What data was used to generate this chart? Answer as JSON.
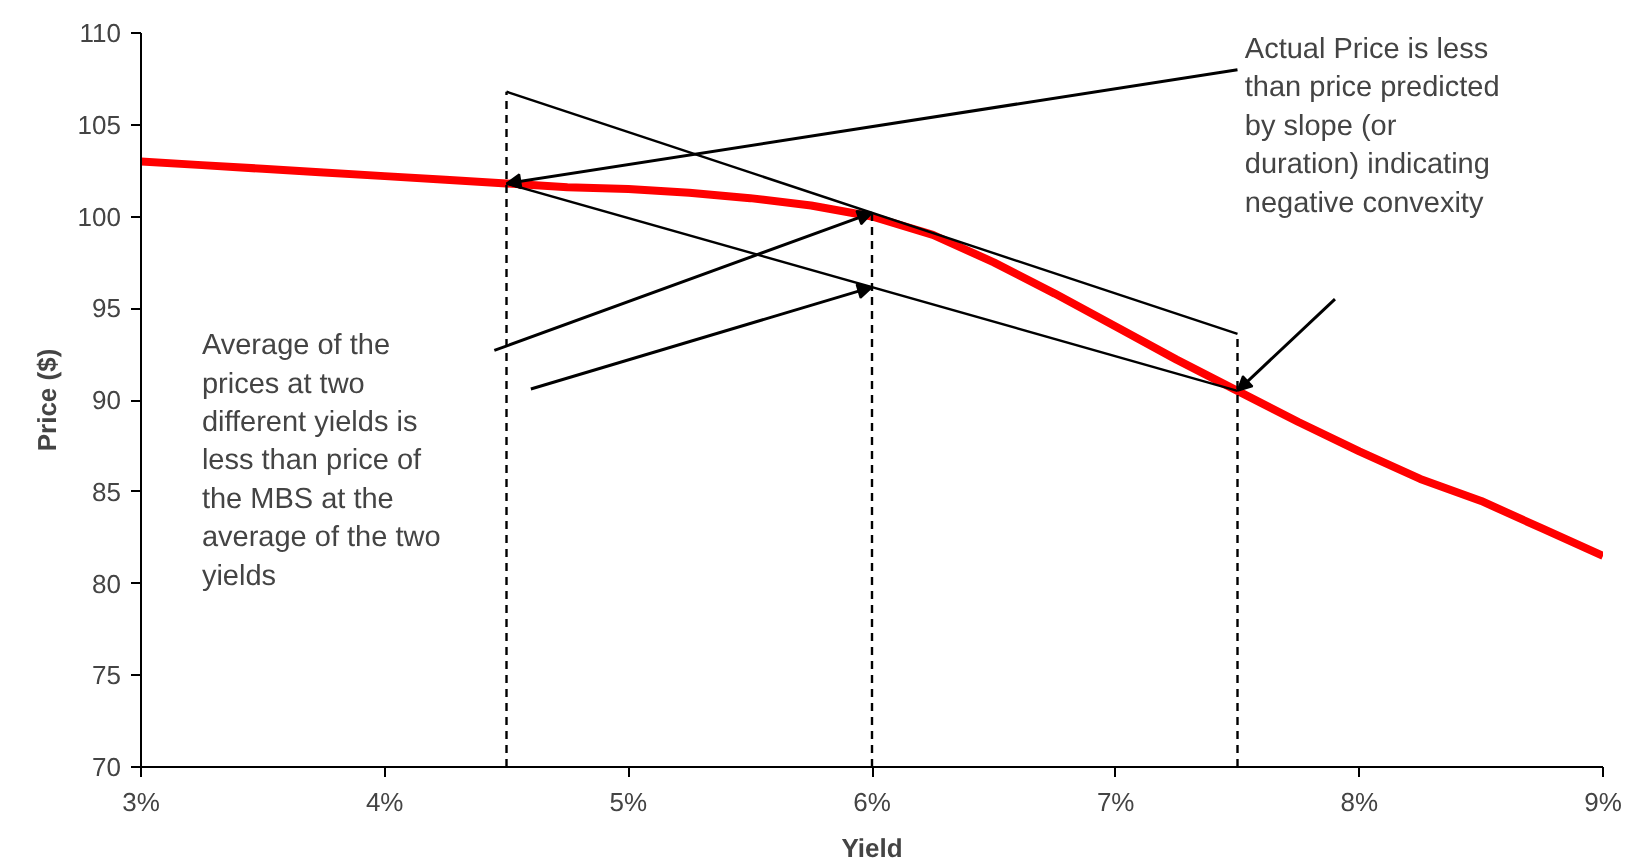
{
  "chart_data": {
    "type": "line",
    "xlabel": "Yield",
    "ylabel": "Price ($)",
    "xlim": [
      3,
      9
    ],
    "xticks": [
      {
        "value": 3,
        "label": "3%"
      },
      {
        "value": 4,
        "label": "4%"
      },
      {
        "value": 5,
        "label": "5%"
      },
      {
        "value": 6,
        "label": "6%"
      },
      {
        "value": 7,
        "label": "7%"
      },
      {
        "value": 8,
        "label": "8%"
      },
      {
        "value": 9,
        "label": "9%"
      }
    ],
    "ylim": [
      70,
      110
    ],
    "yticks": [
      70,
      75,
      80,
      85,
      90,
      95,
      100,
      105,
      110
    ],
    "series": [
      {
        "color": "#ff0000",
        "x": [
          3,
          3.25,
          3.5,
          3.75,
          4,
          4.25,
          4.5,
          4.75,
          5,
          5.25,
          5.5,
          5.75,
          6,
          6.25,
          6.5,
          6.75,
          7,
          7.25,
          7.5,
          7.75,
          8,
          8.25,
          8.5,
          8.75,
          9
        ],
        "values": [
          103,
          102.8,
          102.6,
          102.4,
          102.2,
          102.0,
          101.8,
          101.6,
          101.5,
          101.3,
          101.0,
          100.6,
          100,
          99,
          97.5,
          95.8,
          94,
          92.2,
          90.5,
          88.8,
          87.2,
          85.7,
          84.5,
          83.0,
          81.5
        ]
      },
      {
        "color": "#000000",
        "x": [
          4.5,
          7.5
        ],
        "values": [
          106.8,
          93.6
        ]
      },
      {
        "color": "#000000",
        "x": [
          4.5,
          7.5
        ],
        "values": [
          101.8,
          90.5
        ]
      }
    ],
    "ref_lines": [
      {
        "axis": "x",
        "value": 4.5,
        "color": "#000000",
        "line_style": "dashed"
      },
      {
        "axis": "x",
        "value": 6,
        "color": "#000000",
        "line_style": "dashed"
      },
      {
        "axis": "x",
        "value": 7.5,
        "color": "#000000",
        "line_style": "dashed"
      }
    ],
    "annotations": [
      "Actual Price is less\nthan price predicted\nby slope (or\nduration) indicating\nnegative convexity",
      "Average of the\nprices at two\ndifferent yields is\nless than price of\nthe MBS at the\naverage of the two\nyields"
    ]
  }
}
